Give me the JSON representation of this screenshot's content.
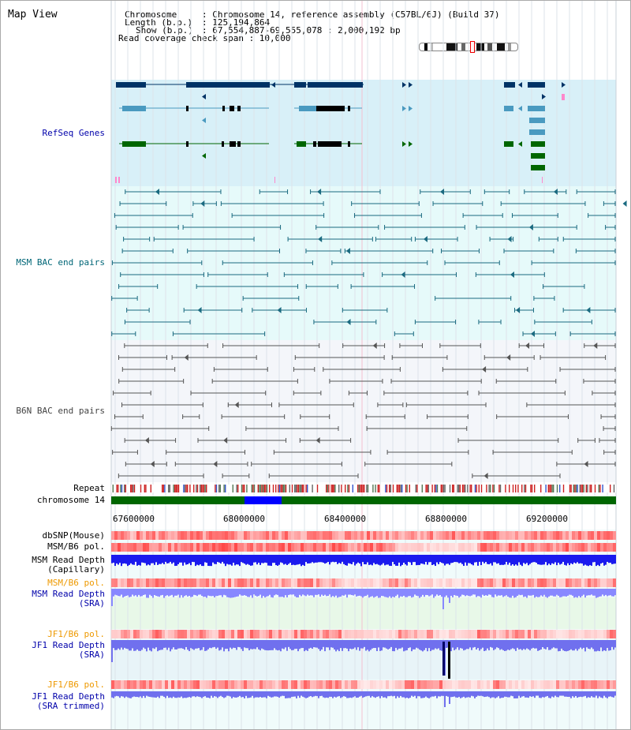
{
  "page": {
    "title": "Map View"
  },
  "info": {
    "chromosome_key": "Chromosome",
    "chromosome_val": ": Chromosome 14, reference assembly (C57BL/6J) (Build 37)",
    "length_key": "Length (b.p.)",
    "length_val": ": 125,194,864",
    "show_key": "Show (b.p.)",
    "show_val": ": 67,554,887-69,555,078 : 2,000,192 bp",
    "coverage": "Read coverage check span : 10,000"
  },
  "tracks": {
    "refseq": "RefSeq Genes",
    "msm_bac": "MSM BAC end pairs",
    "b6n_bac": "B6N BAC end pairs",
    "repeat": "Repeat",
    "chromosome": "chromosome 14",
    "dbsnp": "dbSNP(Mouse)",
    "msm_b6_pol": "MSM/B6 pol.",
    "msm_depth_cap_1": "MSM Read Depth",
    "msm_depth_cap_2": "(Capillary)",
    "msm_b6_pol2": "MSM/B6 pol.",
    "msm_depth_sra_1": "MSM Read Depth",
    "msm_depth_sra_2": "(SRA)",
    "jf1_b6_pol": "JF1/B6 pol.",
    "jf1_depth_sra_1": "JF1 Read Depth",
    "jf1_depth_sra_2": "(SRA)",
    "jf1_b6_pol2": "JF1/B6 pol.",
    "jf1_depth_trim_1": "JF1 Read Depth",
    "jf1_depth_trim_2": "(SRA trimmed)"
  },
  "axis": {
    "ticks": [
      "67600000",
      "68000000",
      "68400000",
      "68800000",
      "69200000"
    ]
  },
  "colors": {
    "refseq_bg": "#d8f0f8",
    "msm_bg": "#e6fafa",
    "b6n_bg": "#f4f6fa",
    "gene_dark": "#003366",
    "gene_mid": "#4a9ac0",
    "gene_green": "#006600",
    "msm_pair": "#1a6a80",
    "b6n_pair": "#555555",
    "chrom_green": "#006600",
    "chrom_blue": "#0000ff",
    "label_blue": "#0000aa",
    "label_orange": "#ee9900",
    "label_teal": "#006677"
  }
}
